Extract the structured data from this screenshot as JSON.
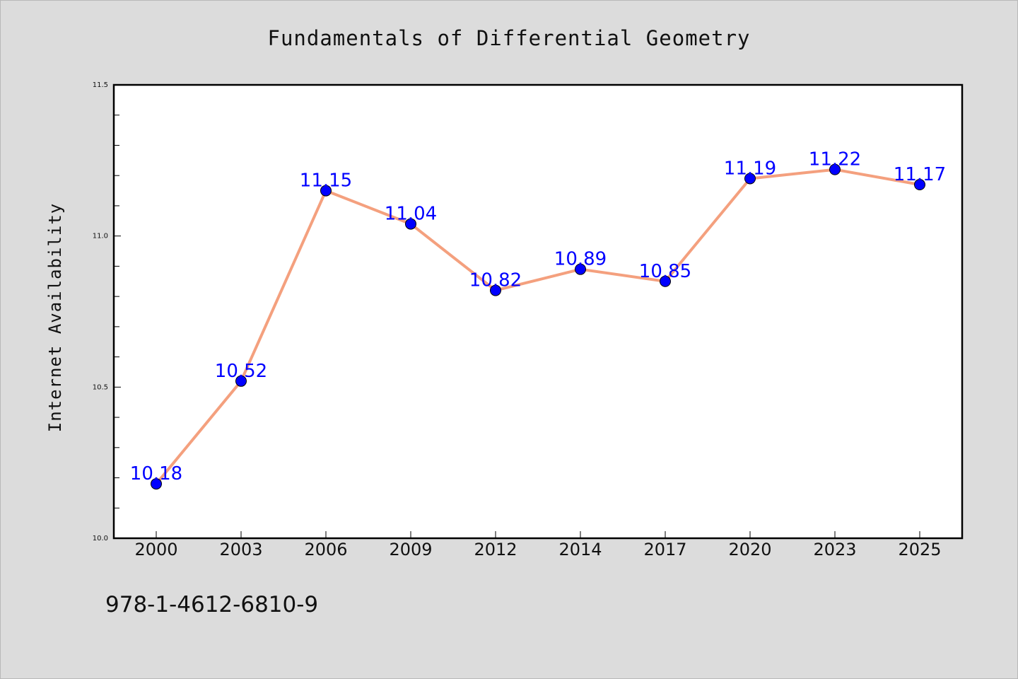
{
  "chart_data": {
    "type": "line",
    "title": "Fundamentals of Differential Geometry",
    "xlabel": "",
    "ylabel": "Internet Availability",
    "categories": [
      "2000",
      "2003",
      "2006",
      "2009",
      "2012",
      "2014",
      "2017",
      "2020",
      "2023",
      "2025"
    ],
    "series": [
      {
        "values": [
          10.18,
          10.52,
          11.15,
          11.04,
          10.82,
          10.89,
          10.85,
          11.19,
          11.22,
          11.17
        ],
        "line_color": "#f4a07e",
        "marker_color": "#0000ff"
      }
    ],
    "data_labels": [
      "10.18",
      "10.52",
      "11.15",
      "11.04",
      "10.82",
      "10.89",
      "10.85",
      "11.19",
      "11.22",
      "11.17"
    ],
    "ylim": [
      10.0,
      11.5
    ],
    "yticks": [
      "10.0",
      "10.5",
      "11.0",
      "11.5"
    ],
    "y_minor_step": 0.1,
    "grid": false,
    "data_label_color": "#0000ff"
  },
  "footer": {
    "isbn": "978-1-4612-6810-9"
  }
}
